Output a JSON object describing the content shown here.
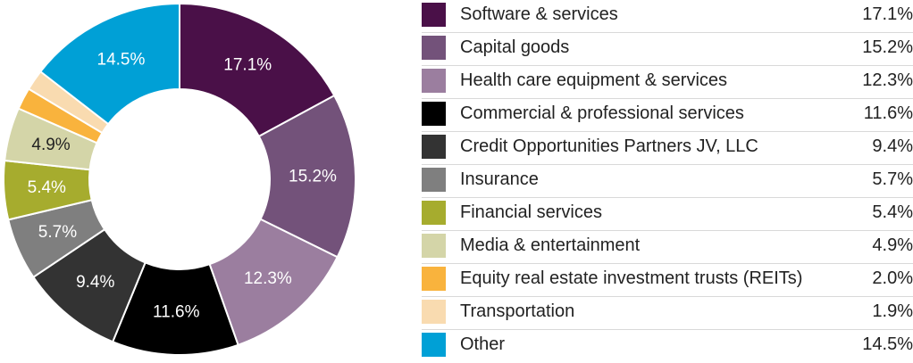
{
  "chart_data": {
    "type": "pie",
    "categories": [
      "Software & services",
      "Capital goods",
      "Health care equipment & services",
      "Commercial & professional services",
      "Credit Opportunities Partners JV, LLC",
      "Insurance",
      "Financial services",
      "Media & entertainment",
      "Equity real estate investment trusts (REITs)",
      "Transportation",
      "Other"
    ],
    "values": [
      17.1,
      15.2,
      12.3,
      11.6,
      9.4,
      5.7,
      5.4,
      4.9,
      2.0,
      1.9,
      14.5
    ],
    "value_labels": [
      "17.1%",
      "15.2%",
      "12.3%",
      "11.6%",
      "9.4%",
      "5.7%",
      "5.4%",
      "4.9%",
      "2.0%",
      "1.9%",
      "14.5%"
    ],
    "slice_labels": [
      "17.1%",
      "15.2%",
      "12.3%",
      "11.6%",
      "9.4%",
      "5.7%",
      "5.4%",
      "4.9%",
      "",
      "",
      "14.5%"
    ],
    "colors": [
      "#4a1048",
      "#73527a",
      "#9b7e9f",
      "#000000",
      "#333333",
      "#7f7f7f",
      "#a6ac2e",
      "#d4d5a8",
      "#f9b33d",
      "#f9dbb0",
      "#00a0d6"
    ],
    "label_colors": [
      "#ffffff",
      "#ffffff",
      "#ffffff",
      "#ffffff",
      "#ffffff",
      "#ffffff",
      "#ffffff",
      "#222222",
      "#222222",
      "#222222",
      "#ffffff"
    ],
    "donut": true,
    "start": "top",
    "direction": "clockwise"
  }
}
